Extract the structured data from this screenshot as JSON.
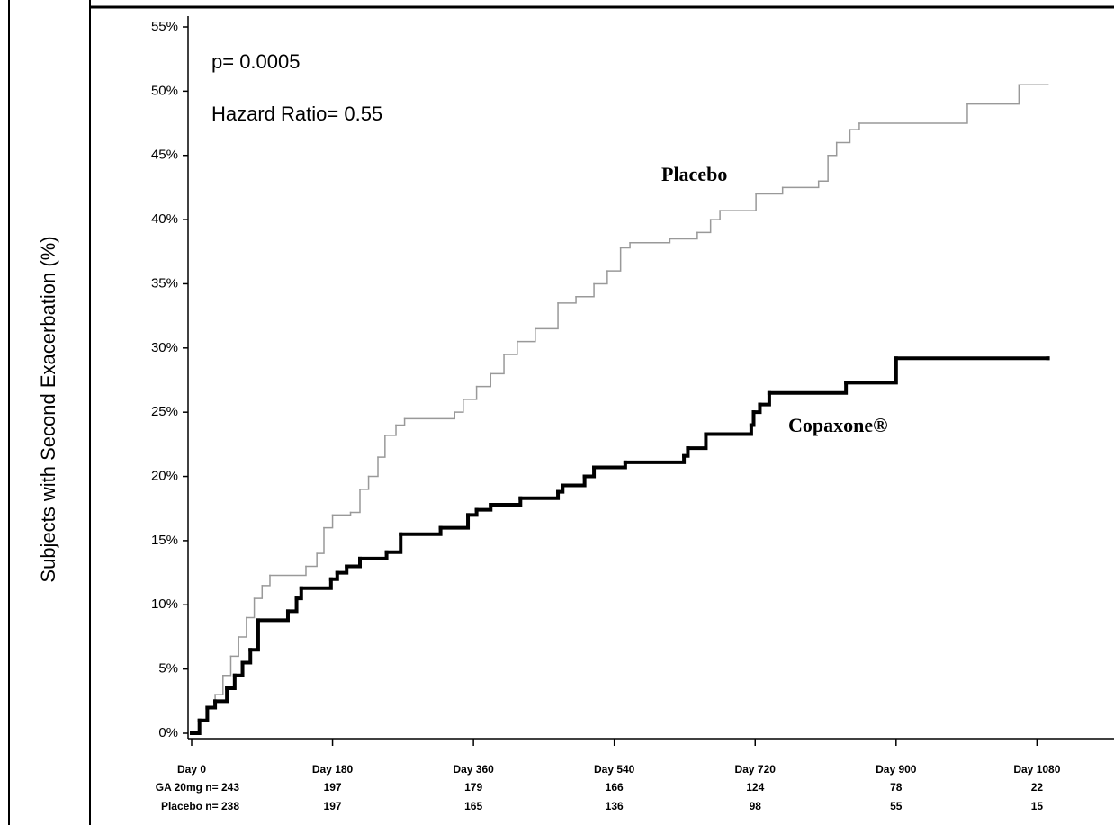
{
  "chart_data": {
    "type": "step",
    "y_label": "Subjects with Second Exacerbation (%)",
    "annotations": [
      "p= 0.0005",
      "Hazard Ratio= 0.55",
      "Placebo",
      "Copaxone®"
    ],
    "xlim": [
      0,
      1175
    ],
    "xticks": [
      {
        "value": 0,
        "label": "Day 0"
      },
      {
        "value": 180,
        "label": "Day 180"
      },
      {
        "value": 360,
        "label": "Day 360"
      },
      {
        "value": 540,
        "label": "Day 540"
      },
      {
        "value": 720,
        "label": "Day 720"
      },
      {
        "value": 900,
        "label": "Day 900"
      },
      {
        "value": 1080,
        "label": "Day 1080"
      }
    ],
    "ylim": [
      0,
      55
    ],
    "yticks": [
      {
        "value": 0,
        "label": "0%"
      },
      {
        "value": 5,
        "label": "5%"
      },
      {
        "value": 10,
        "label": "10%"
      },
      {
        "value": 15,
        "label": "15%"
      },
      {
        "value": 20,
        "label": "20%"
      },
      {
        "value": 25,
        "label": "25%"
      },
      {
        "value": 30,
        "label": "30%"
      },
      {
        "value": 35,
        "label": "35%"
      },
      {
        "value": 40,
        "label": "40%"
      },
      {
        "value": 45,
        "label": "45%"
      },
      {
        "value": 50,
        "label": "50%"
      },
      {
        "value": 55,
        "label": "55%"
      }
    ],
    "series": [
      {
        "name": "Placebo",
        "color": "#999999",
        "width": 1.5,
        "x": [
          0,
          10,
          20,
          30,
          40,
          50,
          60,
          70,
          80,
          90,
          100,
          146,
          160,
          169,
          180,
          203,
          215,
          226,
          238,
          247,
          261,
          272,
          336,
          347,
          364,
          382,
          399,
          416,
          439,
          468,
          491,
          514,
          531,
          548,
          560,
          611,
          646,
          663,
          675,
          721,
          755,
          801,
          813,
          824,
          841,
          853,
          991,
          1057,
          1094
        ],
        "values": [
          0,
          1,
          2,
          3,
          4.5,
          6,
          7.5,
          9,
          10.5,
          11.5,
          12.3,
          13,
          14,
          16,
          17,
          17.2,
          19,
          20,
          21.5,
          23.2,
          24,
          24.5,
          25,
          26,
          27,
          28,
          29.5,
          30.5,
          31.5,
          33.5,
          34,
          35,
          36,
          37.8,
          38.2,
          38.5,
          39,
          40,
          40.7,
          42,
          42.5,
          43,
          45,
          46,
          47,
          47.5,
          49,
          50.5,
          50.5
        ]
      },
      {
        "name": "Copaxone®",
        "color": "#000000",
        "width": 4,
        "x": [
          0,
          10,
          20,
          30,
          45,
          55,
          65,
          75,
          85,
          123,
          134,
          140,
          178,
          186,
          198,
          215,
          249,
          267,
          318,
          353,
          364,
          382,
          420,
          468,
          474,
          502,
          514,
          554,
          629,
          634,
          657,
          715,
          718,
          726,
          738,
          836,
          900,
          1094
        ],
        "values": [
          0,
          1,
          2,
          2.5,
          3.5,
          4.5,
          5.5,
          6.5,
          8.8,
          9.5,
          10.5,
          11.3,
          12,
          12.5,
          13,
          13.6,
          14.1,
          15.5,
          16,
          17,
          17.4,
          17.8,
          18.3,
          18.8,
          19.3,
          20,
          20.7,
          21.1,
          21.6,
          22.2,
          23.3,
          24,
          25,
          25.6,
          26.5,
          27.3,
          29.2,
          29.2
        ]
      }
    ],
    "risk_table": [
      {
        "label": "GA 20mg n= 243",
        "values": [
          197,
          179,
          166,
          124,
          78,
          22
        ]
      },
      {
        "label": "Placebo n= 238",
        "values": [
          197,
          165,
          136,
          98,
          55,
          15
        ]
      }
    ]
  }
}
